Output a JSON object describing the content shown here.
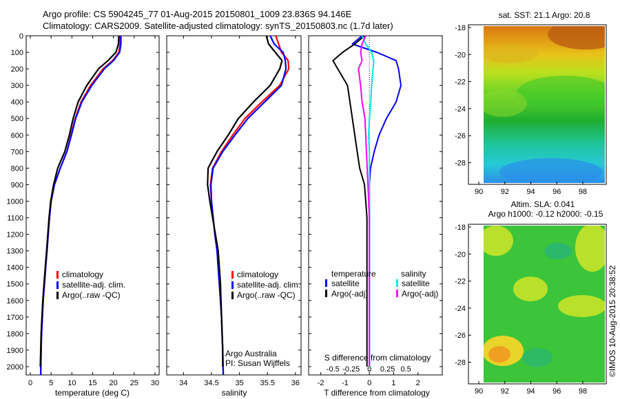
{
  "header": {
    "line1": "Argo profile: CS 5904245_77 01-Aug-2015 20150801_1009 23.836S 94.146E",
    "line2": "Climatology: CARS2009. Satellite-adjusted climatology: synTS_20150803.nc (1.7d later)"
  },
  "side_stamp": "©IMOS 10-Aug-2015 20:38:52",
  "colors": {
    "climatology": "#ff0000",
    "satellite": "#0000ff",
    "argo": "#000000",
    "sal_satellite": "#00e5e5",
    "sal_argo": "#ff00ff"
  },
  "chart_data": [
    {
      "type": "line",
      "id": "temperature",
      "xlabel": "temperature (deg C)",
      "xlim": [
        -1,
        31
      ],
      "xticks": [
        0,
        5,
        10,
        15,
        20,
        25,
        30
      ],
      "ylim": [
        2050,
        0
      ],
      "yticks": [
        0,
        100,
        200,
        300,
        400,
        500,
        600,
        700,
        800,
        900,
        1000,
        1100,
        1200,
        1300,
        1400,
        1500,
        1600,
        1700,
        1800,
        1900,
        2000
      ],
      "legend": [
        "climatology",
        "satellite-adj. clim.",
        "Argo(..raw -QC)"
      ],
      "series": [
        {
          "name": "climatology",
          "color": "red",
          "x": [
            21.6,
            21.6,
            21.3,
            19.8,
            17.5,
            14.5,
            12.2,
            10.8,
            9.8,
            8.8,
            7.2,
            5.8,
            5.0,
            4.6,
            4.3,
            4.0,
            3.7,
            3.4,
            3.1,
            2.9,
            2.7,
            2.6,
            2.5
          ],
          "y": [
            0,
            50,
            100,
            150,
            200,
            300,
            400,
            500,
            600,
            700,
            800,
            900,
            1000,
            1100,
            1200,
            1300,
            1400,
            1500,
            1600,
            1700,
            1800,
            1900,
            2050
          ]
        },
        {
          "name": "satellite-adj. clim.",
          "color": "blue",
          "x": [
            21.8,
            21.8,
            21.5,
            20.0,
            17.8,
            14.8,
            12.4,
            10.9,
            9.9,
            8.8,
            7.2,
            5.8,
            5.0,
            4.6,
            4.3,
            4.0,
            3.7,
            3.4,
            3.1,
            2.9,
            2.7,
            2.6,
            2.5
          ],
          "y": [
            0,
            50,
            100,
            150,
            200,
            300,
            400,
            500,
            600,
            700,
            800,
            900,
            1000,
            1100,
            1200,
            1300,
            1400,
            1500,
            1600,
            1700,
            1800,
            1900,
            2050
          ]
        },
        {
          "name": "Argo(..raw -QC)",
          "color": "black",
          "x": [
            21.3,
            21.2,
            20.6,
            18.7,
            16.4,
            13.6,
            11.5,
            10.3,
            9.4,
            8.3,
            6.6,
            5.6,
            4.9,
            4.5,
            4.2,
            3.9,
            3.6,
            3.3,
            3.0,
            2.8,
            2.6,
            2.5,
            2.4
          ],
          "y": [
            0,
            50,
            100,
            150,
            200,
            300,
            400,
            500,
            600,
            700,
            800,
            900,
            1000,
            1100,
            1200,
            1300,
            1400,
            1500,
            1600,
            1700,
            1800,
            1900,
            2000
          ]
        }
      ]
    },
    {
      "type": "line",
      "id": "salinity",
      "xlabel": "salinity",
      "xlim": [
        33.7,
        36.1
      ],
      "xticks": [
        34,
        34.5,
        35,
        35.5,
        36
      ],
      "ylim": [
        2050,
        0
      ],
      "legend": [
        "climatology",
        "satellite-adj. clim.",
        "Argo(..raw -QC)"
      ],
      "annotation": [
        "Argo Australia",
        "PI: Susan Wijffels"
      ],
      "series": [
        {
          "name": "climatology",
          "color": "red",
          "x": [
            35.65,
            35.7,
            35.75,
            35.87,
            35.88,
            35.72,
            35.4,
            35.1,
            34.88,
            34.68,
            34.52,
            34.48,
            34.5,
            34.53,
            34.56,
            34.6,
            34.62,
            34.64,
            34.66,
            34.68,
            34.69,
            34.7,
            34.71
          ],
          "y": [
            0,
            50,
            100,
            150,
            200,
            300,
            400,
            500,
            600,
            700,
            800,
            900,
            1000,
            1100,
            1200,
            1300,
            1400,
            1500,
            1600,
            1700,
            1800,
            1900,
            2050
          ]
        },
        {
          "name": "satellite-adj. clim.",
          "color": "blue",
          "x": [
            35.55,
            35.62,
            35.78,
            35.82,
            35.83,
            35.75,
            35.45,
            35.15,
            34.92,
            34.7,
            34.53,
            34.49,
            34.5,
            34.53,
            34.56,
            34.6,
            34.62,
            34.64,
            34.66,
            34.68,
            34.69,
            34.7,
            34.71
          ],
          "y": [
            0,
            50,
            100,
            150,
            200,
            300,
            400,
            500,
            600,
            700,
            800,
            900,
            1000,
            1100,
            1200,
            1300,
            1400,
            1500,
            1600,
            1700,
            1800,
            1900,
            2050
          ]
        },
        {
          "name": "Argo(..raw -QC)",
          "color": "black",
          "x": [
            35.48,
            35.52,
            35.64,
            35.76,
            35.72,
            35.55,
            35.25,
            34.98,
            34.8,
            34.6,
            34.44,
            34.43,
            34.47,
            34.52,
            34.57,
            34.62,
            34.64,
            34.66,
            34.67,
            34.68,
            34.69,
            34.7,
            34.7
          ],
          "y": [
            0,
            50,
            100,
            150,
            200,
            300,
            400,
            500,
            600,
            700,
            800,
            900,
            1000,
            1100,
            1200,
            1300,
            1400,
            1500,
            1600,
            1700,
            1800,
            1900,
            2000
          ]
        }
      ]
    },
    {
      "type": "line",
      "id": "difference",
      "xlabel": "T difference from climatology",
      "toplabel": "S difference from climatology",
      "xlim": [
        -2.5,
        3
      ],
      "xticks": [
        -2,
        -1,
        0,
        1,
        2
      ],
      "sticks": [
        "-0.5",
        "-0.25",
        "0",
        "0.25",
        "0.5"
      ],
      "ylim": [
        2050,
        0
      ],
      "legend_temperature": [
        "temperature",
        "satellite",
        "Argo(-adj)"
      ],
      "legend_salinity": [
        "salinity",
        "satellite",
        "Argo(-adj)"
      ],
      "series": [
        {
          "name": "satellite",
          "group": "temperature",
          "color": "blue",
          "x": [
            -0.3,
            -0.7,
            0.3,
            1.1,
            1.2,
            1.3,
            1.1,
            0.7,
            0.4,
            0.2,
            0.05,
            0.0,
            0.0,
            0.0,
            0.0,
            0.0,
            0.0,
            0.0,
            0.0,
            0.0,
            0.0
          ],
          "y": [
            0,
            50,
            100,
            150,
            200,
            300,
            400,
            500,
            600,
            700,
            800,
            900,
            1000,
            1100,
            1200,
            1300,
            1400,
            1500,
            1600,
            1700,
            2000
          ]
        },
        {
          "name": "Argo(-adj)",
          "group": "temperature",
          "color": "black",
          "x": [
            -0.2,
            -0.6,
            -1.1,
            -1.5,
            -1.3,
            -0.9,
            -0.8,
            -0.7,
            -0.6,
            -0.5,
            -0.4,
            -0.2,
            -0.15,
            -0.1,
            -0.1,
            -0.1,
            -0.1,
            -0.1,
            -0.1,
            -0.1,
            -0.1
          ],
          "y": [
            0,
            50,
            100,
            150,
            200,
            300,
            400,
            500,
            600,
            700,
            800,
            900,
            1000,
            1100,
            1200,
            1300,
            1400,
            1500,
            1600,
            1700,
            2000
          ]
        },
        {
          "name": "satellite",
          "group": "salinity",
          "color": "cyan",
          "x": [
            -0.1,
            -0.05,
            0.03,
            0.06,
            0.05,
            0.03,
            0.02,
            0.0,
            -0.01,
            0.0,
            0.0,
            0.0,
            0.0,
            0.0,
            0.0,
            0.0,
            0.0,
            0.0,
            0.0,
            0.0,
            0.0
          ],
          "y": [
            0,
            50,
            100,
            150,
            200,
            300,
            400,
            500,
            600,
            700,
            800,
            900,
            1000,
            1100,
            1200,
            1300,
            1400,
            1500,
            1600,
            1700,
            2000
          ]
        },
        {
          "name": "Argo(-adj)",
          "group": "salinity",
          "color": "magenta",
          "x": [
            -0.05,
            -0.1,
            -0.12,
            -0.1,
            -0.15,
            -0.12,
            -0.1,
            -0.06,
            -0.05,
            -0.04,
            -0.03,
            -0.02,
            -0.01,
            0.0,
            0.0,
            0.0,
            0.0,
            0.0,
            0.0,
            0.0,
            0.0
          ],
          "y": [
            0,
            50,
            100,
            150,
            200,
            300,
            400,
            500,
            600,
            700,
            800,
            900,
            1000,
            1100,
            1200,
            1300,
            1400,
            1500,
            1600,
            1700,
            2000
          ]
        }
      ]
    },
    {
      "type": "heatmap",
      "id": "sst_map",
      "title": "sat. SST: 21.1  Argo: 20.8",
      "xticks": [
        90,
        92,
        94,
        96,
        98
      ],
      "yticks": [
        -18,
        -20,
        -22,
        -24,
        -26,
        -28
      ],
      "xlim": [
        89.2,
        99.8
      ],
      "ylim": [
        -29.6,
        -17.8
      ]
    },
    {
      "type": "heatmap",
      "id": "sla_map",
      "title_line1": "Altim. SLA: 0.041",
      "title_line2": "Argo h1000: -0.12 h2000: -0.15",
      "xticks": [
        90,
        92,
        94,
        96,
        98
      ],
      "yticks": [
        -18,
        -20,
        -22,
        -24,
        -26,
        -28
      ],
      "xlim": [
        89.2,
        99.8
      ],
      "ylim": [
        -29.6,
        -17.8
      ]
    }
  ]
}
